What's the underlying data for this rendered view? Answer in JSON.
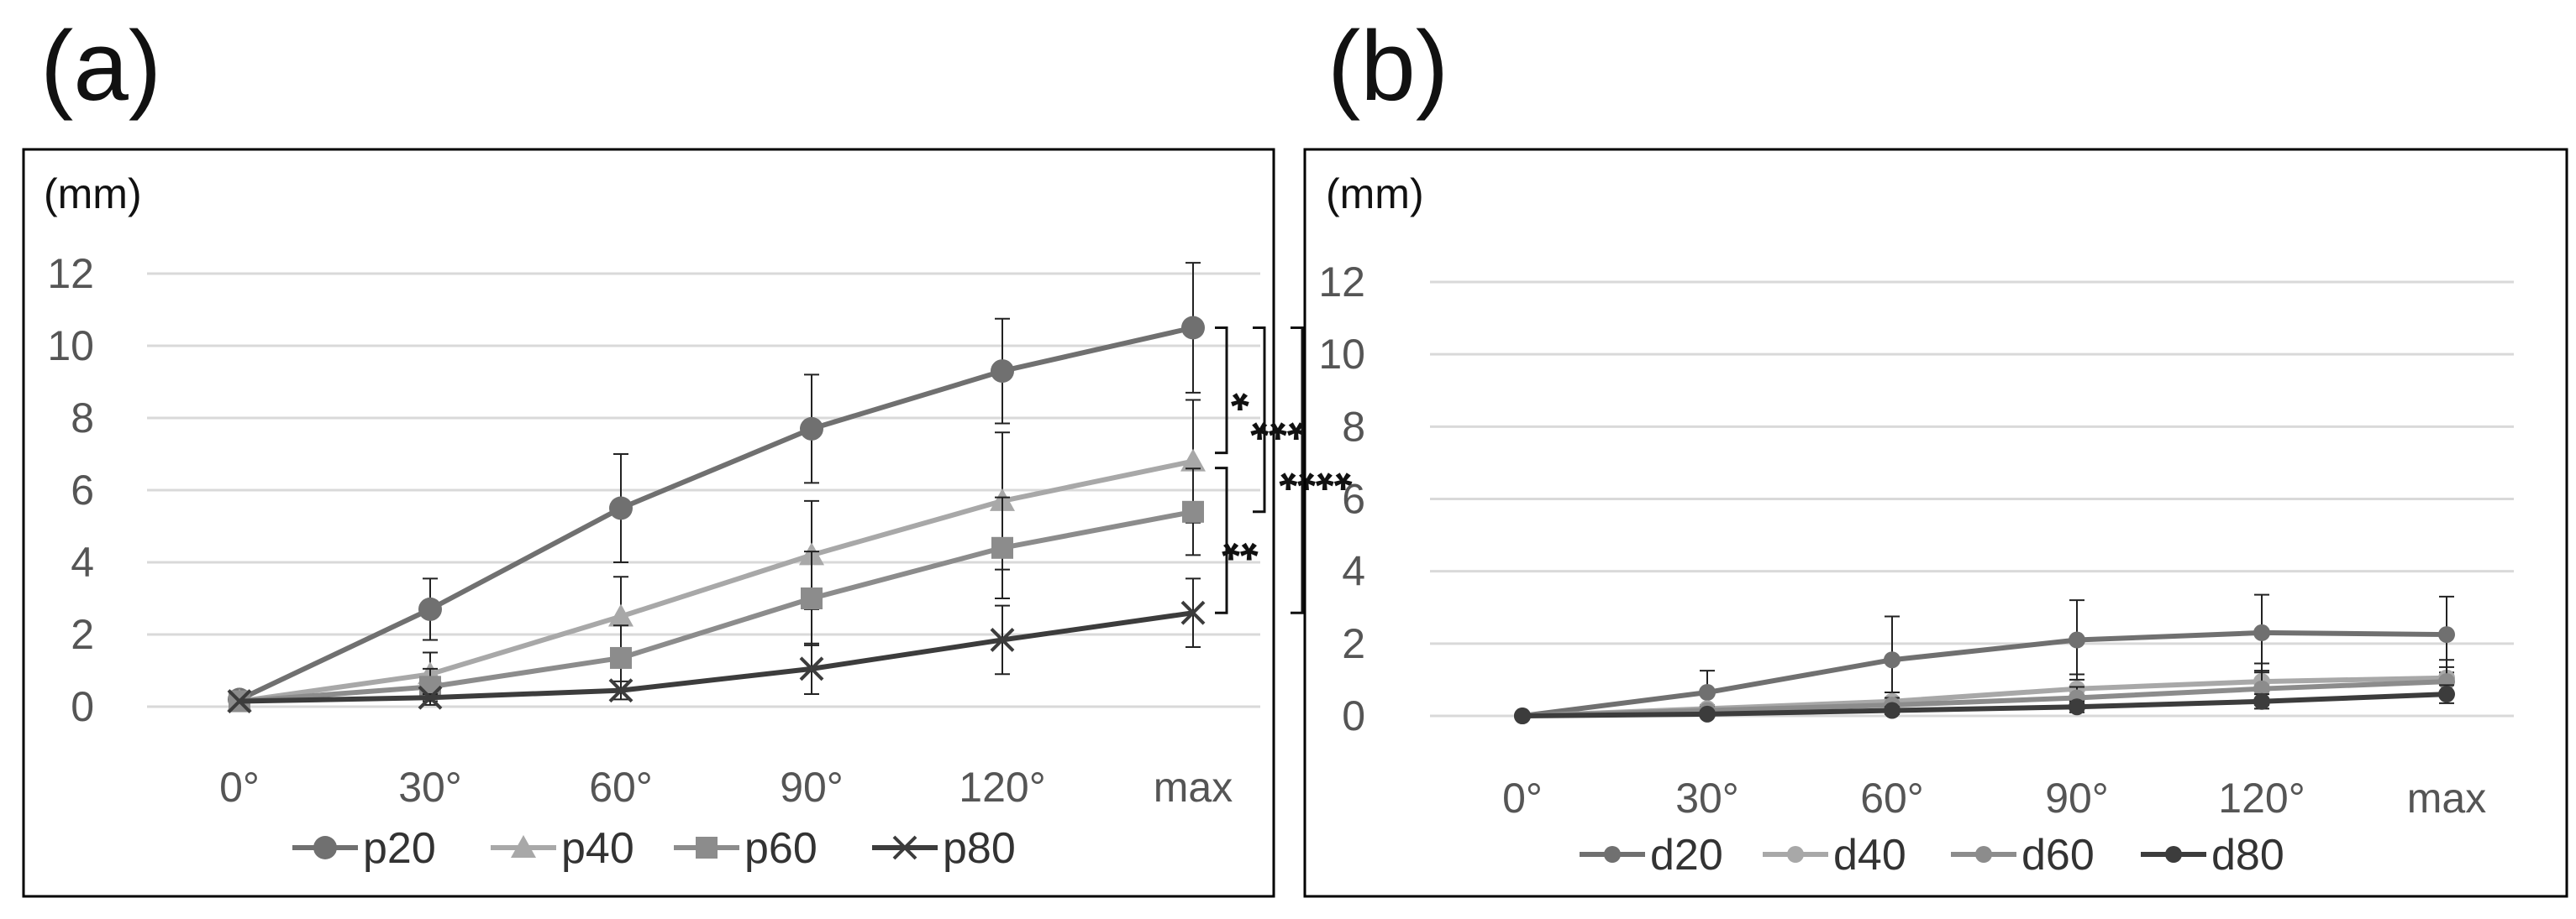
{
  "panels": {
    "a": {
      "label": "(a)"
    },
    "b": {
      "label": "(b)"
    }
  },
  "colors": {
    "s20": "#707070",
    "s40": "#a8a8a8",
    "s60": "#8c8c8c",
    "s80": "#3c3c3c",
    "grid": "#d9d9d9",
    "frame": "#000000"
  },
  "chart_data": [
    {
      "type": "line",
      "panel": "a",
      "title": "",
      "ylabel": "(mm)",
      "xlabel": "",
      "categories": [
        "0°",
        "30°",
        "60°",
        "90°",
        "120°",
        "max"
      ],
      "yticks": [
        "0",
        "2",
        "4",
        "6",
        "8",
        "10",
        "12"
      ],
      "ylim": [
        0,
        12
      ],
      "grid": true,
      "legend_position": "bottom",
      "series": [
        {
          "name": "p20",
          "marker": "circle",
          "color": "#707070",
          "values": [
            0.2,
            2.7,
            5.5,
            7.7,
            9.3,
            10.5
          ],
          "errors": [
            0.0,
            0.85,
            1.5,
            1.5,
            1.45,
            1.8
          ]
        },
        {
          "name": "p40",
          "marker": "triangle",
          "color": "#a8a8a8",
          "values": [
            0.15,
            0.9,
            2.5,
            4.2,
            5.7,
            6.8
          ],
          "errors": [
            0.0,
            0.6,
            1.1,
            1.5,
            1.9,
            1.7
          ]
        },
        {
          "name": "p60",
          "marker": "square",
          "color": "#8c8c8c",
          "values": [
            0.15,
            0.55,
            1.35,
            3.0,
            4.4,
            5.4
          ],
          "errors": [
            0.0,
            0.5,
            0.9,
            1.3,
            1.4,
            1.2
          ]
        },
        {
          "name": "p80",
          "marker": "x",
          "color": "#3c3c3c",
          "values": [
            0.15,
            0.25,
            0.45,
            1.05,
            1.85,
            2.6
          ],
          "errors": [
            0.0,
            0.1,
            0.25,
            0.7,
            0.95,
            0.95
          ]
        }
      ],
      "annotations": [
        {
          "text": "*",
          "from": "p20",
          "to": "p40"
        },
        {
          "text": "***",
          "from": "p20",
          "to": "p60"
        },
        {
          "text": "****",
          "from": "p20",
          "to": "p80"
        },
        {
          "text": "**",
          "from": "p40",
          "to": "p80"
        }
      ]
    },
    {
      "type": "line",
      "panel": "b",
      "title": "",
      "ylabel": "(mm)",
      "xlabel": "",
      "categories": [
        "0°",
        "30°",
        "60°",
        "90°",
        "120°",
        "max"
      ],
      "yticks": [
        "0",
        "2",
        "4",
        "6",
        "8",
        "10",
        "12"
      ],
      "ylim": [
        0,
        12
      ],
      "grid": true,
      "legend_position": "bottom",
      "series": [
        {
          "name": "d20",
          "marker": "dot",
          "color": "#707070",
          "values": [
            0.0,
            0.65,
            1.55,
            2.1,
            2.3,
            2.25
          ],
          "errors": [
            0.0,
            0.6,
            1.2,
            1.1,
            1.05,
            1.05
          ]
        },
        {
          "name": "d40",
          "marker": "dot",
          "color": "#a8a8a8",
          "values": [
            0.0,
            0.2,
            0.4,
            0.75,
            0.95,
            1.05
          ],
          "errors": [
            0.0,
            0.1,
            0.25,
            0.4,
            0.5,
            0.5
          ]
        },
        {
          "name": "d60",
          "marker": "dot",
          "color": "#8c8c8c",
          "values": [
            0.0,
            0.15,
            0.3,
            0.5,
            0.75,
            0.95
          ],
          "errors": [
            0.0,
            0.1,
            0.2,
            0.3,
            0.45,
            0.4
          ]
        },
        {
          "name": "d80",
          "marker": "dot",
          "color": "#3c3c3c",
          "values": [
            0.0,
            0.05,
            0.15,
            0.25,
            0.4,
            0.6
          ],
          "errors": [
            0.0,
            0.05,
            0.1,
            0.15,
            0.2,
            0.25
          ]
        }
      ]
    }
  ]
}
